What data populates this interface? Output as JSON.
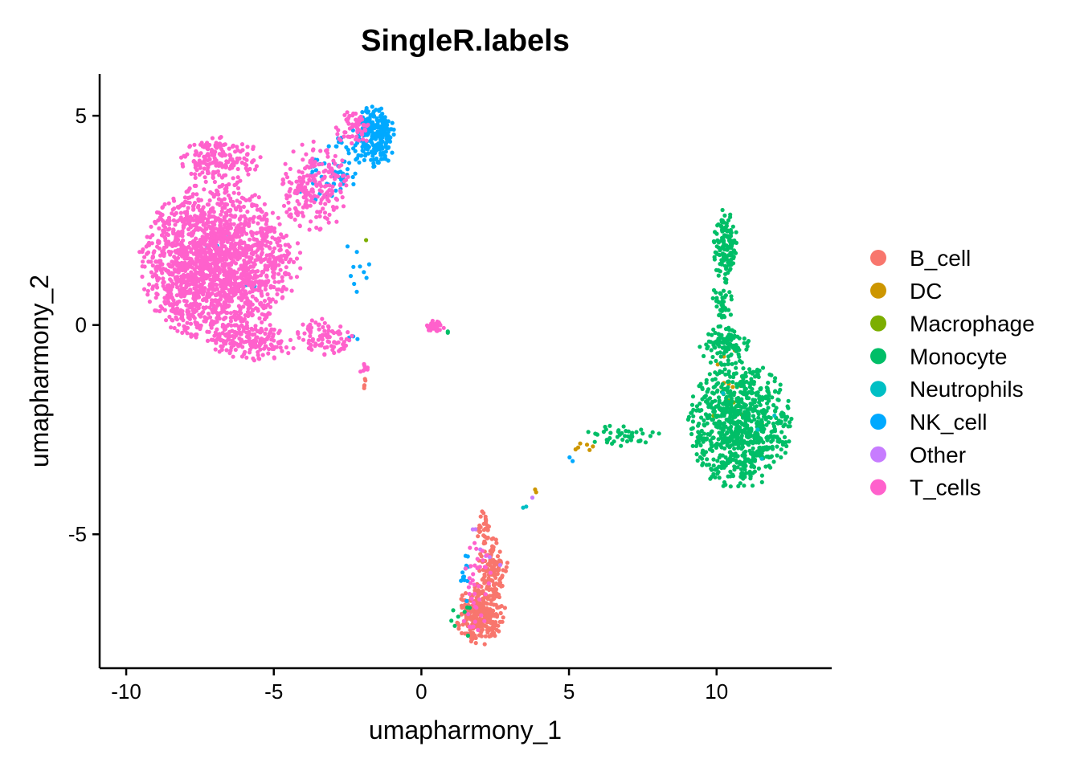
{
  "chart_data": {
    "type": "scatter",
    "title": "SingleR.labels",
    "xlabel": "umapharmony_1",
    "ylabel": "umapharmony_2",
    "xlim": [
      -10.9,
      13.9
    ],
    "ylim": [
      -8.2,
      6.0
    ],
    "x_ticks": [
      -10,
      -5,
      0,
      5,
      10
    ],
    "y_ticks": [
      -5,
      0,
      5
    ],
    "x_tick_labels": [
      "-10",
      "-5",
      "0",
      "5",
      "10"
    ],
    "y_tick_labels": [
      "-5",
      "0",
      "5"
    ],
    "grid": false,
    "legend_position": "right",
    "series": [
      {
        "name": "B_cell",
        "color": "#F8766D",
        "clusters": [
          {
            "cx": 2.0,
            "cy": -6.9,
            "rx": 0.85,
            "ry": 0.75,
            "n": 300
          },
          {
            "cx": 2.4,
            "cy": -5.8,
            "rx": 0.55,
            "ry": 0.75,
            "n": 110
          },
          {
            "cx": 2.1,
            "cy": -4.8,
            "rx": 0.3,
            "ry": 0.45,
            "n": 30
          },
          {
            "cx": -1.9,
            "cy": -1.3,
            "rx": 0.1,
            "ry": 0.3,
            "n": 5
          }
        ]
      },
      {
        "name": "DC",
        "color": "#CD9600",
        "clusters": [
          {
            "cx": 5.5,
            "cy": -2.9,
            "rx": 0.35,
            "ry": 0.12,
            "n": 6
          },
          {
            "cx": 10.5,
            "cy": -1.2,
            "rx": 0.7,
            "ry": 0.9,
            "n": 9
          },
          {
            "cx": 3.9,
            "cy": -4.0,
            "rx": 0.1,
            "ry": 0.08,
            "n": 2
          }
        ]
      },
      {
        "name": "Macrophage",
        "color": "#7CAE00",
        "clusters": [
          {
            "cx": 10.8,
            "cy": -2.2,
            "rx": 1.2,
            "ry": 1.1,
            "n": 6
          },
          {
            "cx": -1.9,
            "cy": 2.0,
            "rx": 0.1,
            "ry": 0.1,
            "n": 1
          }
        ]
      },
      {
        "name": "Monocyte",
        "color": "#00BE67",
        "clusters": [
          {
            "cx": 10.8,
            "cy": -2.4,
            "rx": 1.8,
            "ry": 1.55,
            "n": 820
          },
          {
            "cx": 10.3,
            "cy": -0.5,
            "rx": 0.9,
            "ry": 0.5,
            "n": 110
          },
          {
            "cx": 10.3,
            "cy": 1.9,
            "rx": 0.45,
            "ry": 0.9,
            "n": 130
          },
          {
            "cx": 10.2,
            "cy": 0.5,
            "rx": 0.35,
            "ry": 0.6,
            "n": 40
          },
          {
            "cx": 6.8,
            "cy": -2.65,
            "rx": 1.3,
            "ry": 0.3,
            "n": 45
          },
          {
            "cx": 1.5,
            "cy": -7.1,
            "rx": 0.6,
            "ry": 0.6,
            "n": 8
          },
          {
            "cx": 0.9,
            "cy": -0.2,
            "rx": 0.1,
            "ry": 0.05,
            "n": 2
          }
        ]
      },
      {
        "name": "Neutrophils",
        "color": "#00BFC4",
        "clusters": [
          {
            "cx": 10.9,
            "cy": -2.4,
            "rx": 1.3,
            "ry": 1.1,
            "n": 4
          },
          {
            "cx": 3.5,
            "cy": -4.4,
            "rx": 0.1,
            "ry": 0.1,
            "n": 2
          }
        ]
      },
      {
        "name": "NK_cell",
        "color": "#00A9FF",
        "clusters": [
          {
            "cx": -1.6,
            "cy": 4.5,
            "rx": 0.75,
            "ry": 0.75,
            "n": 260
          },
          {
            "cx": -2.8,
            "cy": 3.7,
            "rx": 0.9,
            "ry": 0.8,
            "n": 45
          },
          {
            "cx": -3.6,
            "cy": 3.5,
            "rx": 0.6,
            "ry": 0.7,
            "n": 15
          },
          {
            "cx": -2.2,
            "cy": 1.4,
            "rx": 0.5,
            "ry": 1.0,
            "n": 10
          },
          {
            "cx": 1.5,
            "cy": -6.0,
            "rx": 0.25,
            "ry": 0.7,
            "n": 14
          },
          {
            "cx": -6.5,
            "cy": 1.5,
            "rx": 1.5,
            "ry": 1.2,
            "n": 8
          },
          {
            "cx": -2.4,
            "cy": -0.3,
            "rx": 0.4,
            "ry": 0.2,
            "n": 3
          },
          {
            "cx": 5.1,
            "cy": -3.2,
            "rx": 0.2,
            "ry": 0.1,
            "n": 2
          }
        ]
      },
      {
        "name": "Other",
        "color": "#C77CFF",
        "clusters": [
          {
            "cx": 2.1,
            "cy": -5.5,
            "rx": 0.7,
            "ry": 1.2,
            "n": 6
          },
          {
            "cx": 3.8,
            "cy": -4.2,
            "rx": 0.1,
            "ry": 0.1,
            "n": 1
          }
        ]
      },
      {
        "name": "T_cells",
        "color": "#FF61CC",
        "clusters": [
          {
            "cx": -7.0,
            "cy": 1.5,
            "rx": 2.6,
            "ry": 1.9,
            "n": 1850
          },
          {
            "cx": -6.8,
            "cy": 3.9,
            "rx": 1.4,
            "ry": 0.6,
            "n": 180
          },
          {
            "cx": -5.7,
            "cy": -0.4,
            "rx": 1.5,
            "ry": 0.45,
            "n": 160
          },
          {
            "cx": -3.6,
            "cy": 3.3,
            "rx": 1.2,
            "ry": 1.1,
            "n": 210
          },
          {
            "cx": -2.3,
            "cy": 4.7,
            "rx": 0.6,
            "ry": 0.45,
            "n": 55
          },
          {
            "cx": -3.3,
            "cy": -0.3,
            "rx": 1.0,
            "ry": 0.45,
            "n": 90
          },
          {
            "cx": -4.6,
            "cy": 1.5,
            "rx": 0.6,
            "ry": 0.8,
            "n": 40
          },
          {
            "cx": 0.45,
            "cy": -0.02,
            "rx": 0.35,
            "ry": 0.13,
            "n": 38
          },
          {
            "cx": 1.8,
            "cy": -6.3,
            "rx": 0.6,
            "ry": 1.3,
            "n": 40
          },
          {
            "cx": -1.9,
            "cy": -1.0,
            "rx": 0.25,
            "ry": 0.35,
            "n": 8
          }
        ]
      }
    ]
  }
}
